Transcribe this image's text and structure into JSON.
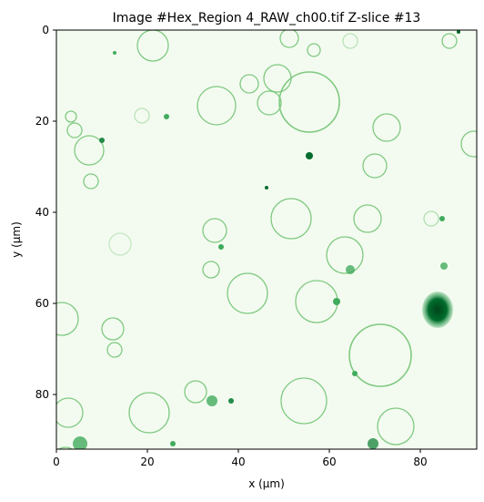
{
  "figure": {
    "title": "Image #Hex_Region 4_RAW_ch00.tif Z-slice #13",
    "xlabel": "x (μm)",
    "ylabel": "y (μm)",
    "colormap": "Greens",
    "background_color": "#f3fbf0",
    "xlim": [
      0,
      92
    ],
    "ylim": [
      92,
      0
    ],
    "x_ticks": [
      {
        "value": 0,
        "label": "0"
      },
      {
        "value": 20,
        "label": "20"
      },
      {
        "value": 40,
        "label": "40"
      },
      {
        "value": 60,
        "label": "60"
      },
      {
        "value": 80,
        "label": "80"
      }
    ],
    "y_ticks": [
      {
        "value": 0,
        "label": "0"
      },
      {
        "value": 20,
        "label": "20"
      },
      {
        "value": 40,
        "label": "40"
      },
      {
        "value": 60,
        "label": "60"
      },
      {
        "value": 80,
        "label": "80"
      }
    ]
  }
}
